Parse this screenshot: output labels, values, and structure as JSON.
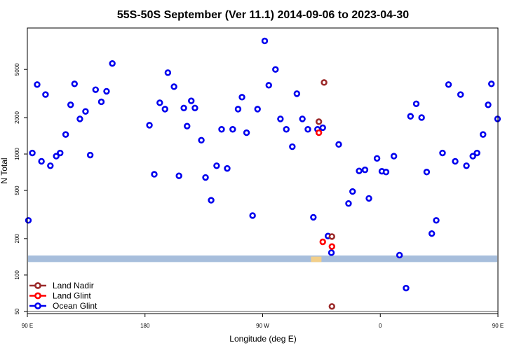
{
  "chart_data": {
    "type": "scatter",
    "title": "55S-50S September (Ver 11.1)   2014-09-06 to 2023-04-30",
    "xlabel": "Longitude (deg E)",
    "ylabel": "N Total",
    "y_scale": "log",
    "xlim": [
      90,
      450
    ],
    "ylim": [
      48,
      11000
    ],
    "x_ticks": [
      {
        "value": 90,
        "label": "90 E"
      },
      {
        "value": 180,
        "label": "180"
      },
      {
        "value": 270,
        "label": "90 W"
      },
      {
        "value": 360,
        "label": "0"
      },
      {
        "value": 450,
        "label": "90 E"
      },
      {
        "value": 540,
        "label": "180"
      }
    ],
    "y_ticks": [
      {
        "value": 50,
        "label": "50"
      },
      {
        "value": 100,
        "label": "100"
      },
      {
        "value": 200,
        "label": "200"
      },
      {
        "value": 500,
        "label": "500"
      },
      {
        "value": 1000,
        "label": "1000"
      },
      {
        "value": 2000,
        "label": "2000"
      },
      {
        "value": 5000,
        "label": "5000"
      }
    ],
    "reference_line": 50,
    "band": {
      "y_min": 128,
      "y_max": 145,
      "color": "#a7bedc"
    },
    "land_strip": {
      "x_min": 307,
      "x_max": 315,
      "y_min": 128,
      "y_max": 142,
      "color": "#f2cf8a"
    },
    "legend": {
      "position": "bottom-left"
    },
    "series": [
      {
        "name": "Land Nadir",
        "color": "#9b2a2a",
        "points": [
          [
            317,
            3900
          ],
          [
            313,
            1850
          ],
          [
            323,
            208
          ],
          [
            323,
            55
          ]
        ]
      },
      {
        "name": "Land Glint",
        "color": "#ff0000",
        "points": [
          [
            313,
            1500
          ],
          [
            316,
            188
          ],
          [
            323,
            172
          ]
        ]
      },
      {
        "name": "Ocean Glint",
        "color": "#0000ee",
        "points": [
          [
            183.4,
            1730
          ],
          [
            187.1,
            680
          ],
          [
            191.3,
            2650
          ],
          [
            195.3,
            2350
          ],
          [
            197.5,
            4700
          ],
          [
            202.2,
            3600
          ],
          [
            206.0,
            660
          ],
          [
            209.7,
            2400
          ],
          [
            212.2,
            1700
          ],
          [
            215.4,
            2750
          ],
          [
            218.2,
            2400
          ],
          [
            223.1,
            1300
          ],
          [
            226.3,
            640
          ],
          [
            230.6,
            415
          ],
          [
            234.8,
            800
          ],
          [
            238.6,
            1600
          ],
          [
            242.9,
            760
          ],
          [
            247.1,
            1600
          ],
          [
            251.2,
            2350
          ],
          [
            254.2,
            2950
          ],
          [
            257.7,
            1500
          ],
          [
            262.3,
            310
          ],
          [
            266.1,
            2350
          ],
          [
            271.6,
            8600
          ],
          [
            274.7,
            3700
          ],
          [
            279.8,
            5000
          ],
          [
            283.6,
            1950
          ],
          [
            288.1,
            1600
          ],
          [
            292.7,
            1150
          ],
          [
            296.2,
            3150
          ],
          [
            300.4,
            1950
          ],
          [
            304.6,
            1600
          ],
          [
            308.8,
            300
          ],
          [
            312.0,
            1600
          ],
          [
            316.0,
            1650
          ],
          [
            320.0,
            210
          ],
          [
            322.6,
            153
          ],
          [
            328.2,
            1200
          ],
          [
            335.7,
            390
          ],
          [
            338.8,
            490
          ],
          [
            343.8,
            725
          ],
          [
            348.3,
            740
          ],
          [
            351.3,
            430
          ],
          [
            357.5,
            920
          ],
          [
            361.2,
            720
          ],
          [
            364.4,
            710
          ],
          [
            370.4,
            960
          ],
          [
            374.7,
            146
          ],
          [
            379.7,
            78
          ],
          [
            383.1,
            2050
          ],
          [
            387.5,
            2600
          ],
          [
            391.6,
            2000
          ],
          [
            395.5,
            710
          ],
          [
            399.4,
            220
          ],
          [
            402.8,
            283
          ],
          [
            407.6,
            1020
          ],
          [
            412.2,
            3750
          ],
          [
            417.3,
            870
          ],
          [
            421.4,
            3100
          ],
          [
            425.9,
            800
          ],
          [
            430.8,
            960
          ],
          [
            434.0,
            1020
          ],
          [
            438.6,
            1450
          ],
          [
            442.5,
            2550
          ],
          [
            445.0,
            3800
          ],
          [
            449.7,
            1950
          ],
          [
            90.8,
            283
          ],
          [
            93.8,
            1020
          ],
          [
            97.5,
            3750
          ],
          [
            100.8,
            870
          ],
          [
            103.9,
            3100
          ],
          [
            107.6,
            800
          ],
          [
            112.1,
            960
          ],
          [
            115.1,
            1020
          ],
          [
            119.3,
            1450
          ],
          [
            123.1,
            2550
          ],
          [
            126.1,
            3800
          ],
          [
            130.2,
            1950
          ],
          [
            134.5,
            2250
          ],
          [
            138.1,
            980
          ],
          [
            142.2,
            3400
          ],
          [
            146.6,
            2700
          ],
          [
            150.6,
            3300
          ],
          [
            155.0,
            5600
          ]
        ]
      }
    ]
  }
}
